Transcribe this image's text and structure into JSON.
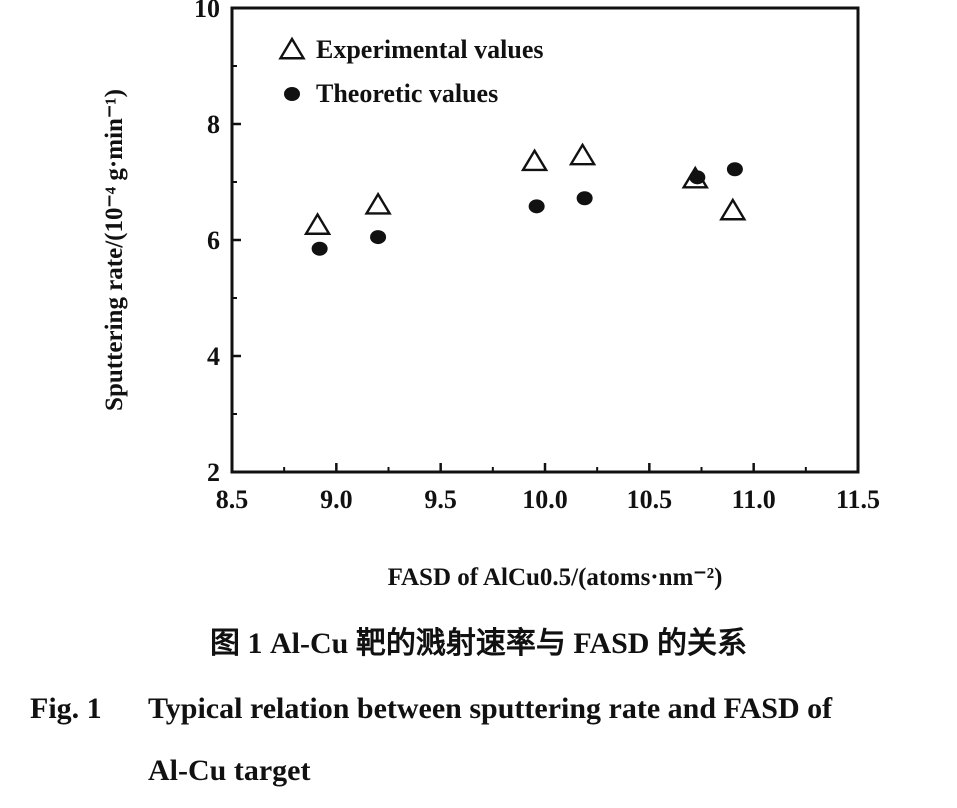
{
  "chart_data": {
    "type": "scatter",
    "xlabel": "FASD of AlCu0.5/(atoms·nm⁻²)",
    "ylabel": "Sputtering rate/(10⁻⁴ g·min⁻¹)",
    "xlim": [
      8.5,
      11.5
    ],
    "ylim": [
      2,
      10
    ],
    "x_ticks": [
      "8.5",
      "9.0",
      "9.5",
      "10.0",
      "10.5",
      "11.0",
      "11.5"
    ],
    "y_ticks": [
      "2",
      "4",
      "6",
      "8",
      "10"
    ],
    "legend_position": "top-left",
    "grid": false,
    "series": [
      {
        "name": "Experimental values",
        "marker": "open-triangle",
        "points": [
          [
            8.91,
            6.25
          ],
          [
            9.2,
            6.6
          ],
          [
            9.95,
            7.35
          ],
          [
            10.18,
            7.45
          ],
          [
            10.72,
            7.05
          ],
          [
            10.9,
            6.5
          ]
        ]
      },
      {
        "name": "Theoretic values",
        "marker": "filled-circle",
        "points": [
          [
            8.92,
            5.85
          ],
          [
            9.2,
            6.05
          ],
          [
            9.96,
            6.58
          ],
          [
            10.19,
            6.72
          ],
          [
            10.73,
            7.08
          ],
          [
            10.91,
            7.22
          ]
        ]
      }
    ]
  },
  "caption": {
    "chinese": "图 1 Al-Cu 靶的溅射速率与 FASD 的关系",
    "fig_label": "Fig. 1",
    "english_line1": "Typical relation between sputtering rate and FASD of",
    "english_line2": "Al-Cu target"
  },
  "colors": {
    "ink": "#111111",
    "background": "#ffffff"
  }
}
